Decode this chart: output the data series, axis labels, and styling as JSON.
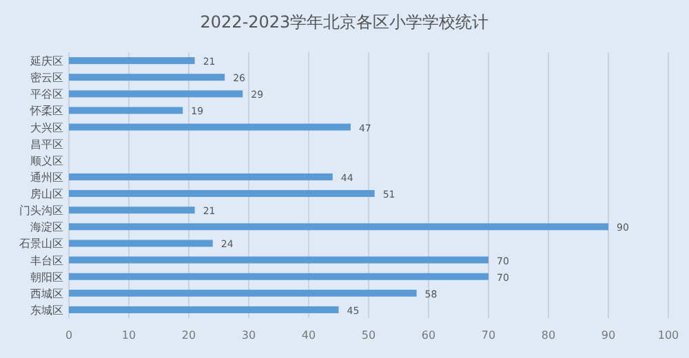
{
  "chart_data": {
    "type": "bar",
    "orientation": "horizontal",
    "title": "2022-2023学年北京各区小学学校统计",
    "categories": [
      "延庆区",
      "密云区",
      "平谷区",
      "怀柔区",
      "大兴区",
      "昌平区",
      "顺义区",
      "通州区",
      "房山区",
      "门头沟区",
      "海淀区",
      "石景山区",
      "丰台区",
      "朝阳区",
      "西城区",
      "东城区"
    ],
    "values": [
      21,
      26,
      29,
      19,
      47,
      null,
      null,
      44,
      51,
      21,
      90,
      24,
      70,
      70,
      58,
      45
    ],
    "color": "#5b9bd5",
    "xlim": [
      0,
      100
    ],
    "xticks": [
      0,
      10,
      20,
      30,
      40,
      50,
      60,
      70,
      80,
      90,
      100
    ],
    "grid": "x",
    "data_labels": true
  }
}
